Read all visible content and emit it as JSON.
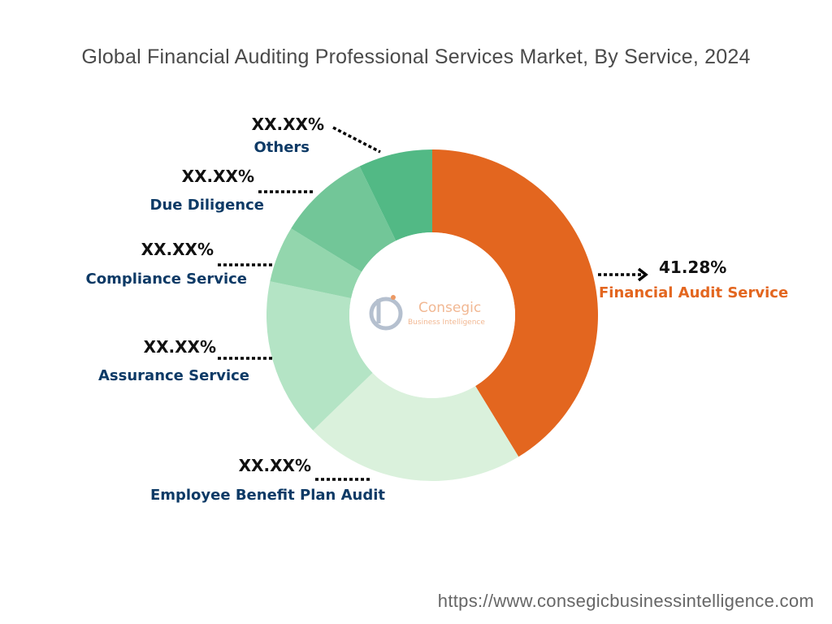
{
  "chart_data": {
    "type": "pie",
    "title": "Global Financial Auditing Professional Services Market, By Service, 2024",
    "series": [
      {
        "categories": [
          "Financial Audit Service",
          "Employee Benefit Plan Audit",
          "Assurance Service",
          "Compliance Service",
          "Due Diligence",
          "Others"
        ],
        "values": [
          41.28,
          21.5,
          15.5,
          5.5,
          9.0,
          7.22
        ],
        "labels": [
          "41.28%",
          "XX.XX%",
          "XX.XX%",
          "XX.XX%",
          "XX.XX%",
          "XX.XX%"
        ],
        "colors": [
          "#e3661f",
          "#daf1dc",
          "#b4e4c5",
          "#93d6ad",
          "#72c698",
          "#52b985"
        ]
      }
    ],
    "hole": "donut",
    "legend": "none"
  },
  "logo": {
    "name": "Consegic",
    "tagline": "Business Intelligence"
  },
  "footer": {
    "url": "https://www.consegicbusinessintelligence.com"
  }
}
